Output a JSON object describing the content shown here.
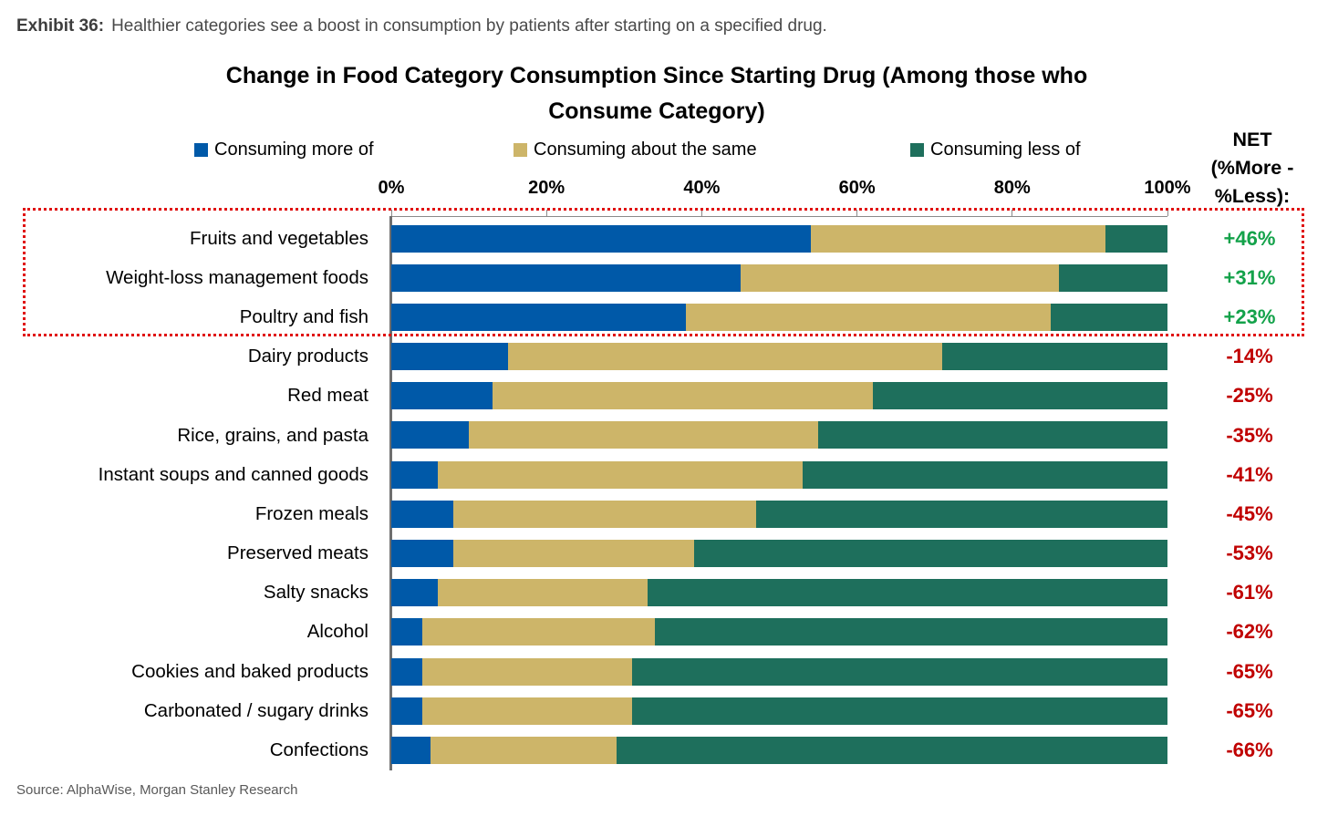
{
  "exhibit": {
    "label": "Exhibit 36:",
    "description": "Healthier categories see a boost in consumption by patients after starting on a specified drug."
  },
  "title": {
    "line1": "Change in Food Category Consumption Since Starting Drug (Among those who",
    "line2": "Consume Category)"
  },
  "legend": [
    {
      "label": "Consuming more of",
      "color": "#0059A8"
    },
    {
      "label": "Consuming about the same",
      "color": "#CDB569"
    },
    {
      "label": "Consuming less of",
      "color": "#1E6F5C"
    }
  ],
  "net_header": {
    "line1": "NET",
    "line2": "(%More -",
    "line3": "%Less):"
  },
  "source": "Source: AlphaWise, Morgan Stanley Research",
  "colors": {
    "more": "#0059A8",
    "same": "#CDB569",
    "less": "#1E6F5C",
    "net_positive": "#13A24A",
    "net_negative": "#C00000",
    "highlight_border": "#E01010",
    "axis": "#8A8A8A",
    "category_axis": "#6E6E6E",
    "source_text": "#595959"
  },
  "chart_data": {
    "type": "bar",
    "orientation": "horizontal_stacked",
    "title": "Change in Food Category Consumption Since Starting Drug (Among those who Consume Category)",
    "xlim": [
      0,
      100
    ],
    "x_tick_labels": [
      "0%",
      "20%",
      "40%",
      "60%",
      "80%",
      "100%"
    ],
    "legend_position": "top",
    "grid": false,
    "categories": [
      "Fruits and vegetables",
      "Weight-loss management foods",
      "Poultry and fish",
      "Dairy products",
      "Red meat",
      "Rice, grains, and pasta",
      "Instant soups and canned goods",
      "Frozen meals",
      "Preserved meats",
      "Salty snacks",
      "Alcohol",
      "Cookies and baked products",
      "Carbonated / sugary drinks",
      "Confections"
    ],
    "series": [
      {
        "name": "Consuming more of",
        "values": [
          54,
          45,
          38,
          15,
          13,
          10,
          6,
          8,
          8,
          6,
          4,
          4,
          4,
          5
        ]
      },
      {
        "name": "Consuming about the same",
        "values": [
          38,
          41,
          47,
          56,
          49,
          45,
          47,
          39,
          31,
          27,
          30,
          27,
          27,
          24
        ]
      },
      {
        "name": "Consuming less of",
        "values": [
          8,
          14,
          15,
          29,
          38,
          45,
          47,
          53,
          61,
          67,
          66,
          69,
          69,
          71
        ]
      }
    ],
    "net_label": "NET (%More - %Less):",
    "net": [
      "+46%",
      "+31%",
      "+23%",
      "-14%",
      "-25%",
      "-35%",
      "-41%",
      "-45%",
      "-53%",
      "-61%",
      "-62%",
      "-65%",
      "-65%",
      "-66%"
    ],
    "highlighted_categories": [
      "Fruits and vegetables",
      "Weight-loss management foods",
      "Poultry and fish"
    ]
  }
}
